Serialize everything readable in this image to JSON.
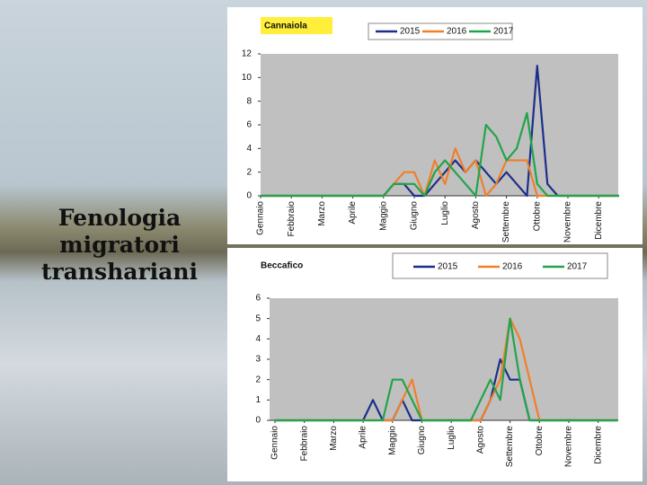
{
  "slide_title": "Fenologia migratori transhariani",
  "chart_data": [
    {
      "type": "line",
      "title": "Cannaiola",
      "categories": [
        "Gennaio",
        null,
        null,
        "Febbraio",
        null,
        null,
        "Marzo",
        null,
        null,
        "Aprile",
        null,
        null,
        "Maggio",
        null,
        null,
        "Giugno",
        null,
        null,
        "Luglio",
        null,
        null,
        "Agosto",
        null,
        null,
        "Settembre",
        null,
        null,
        "Ottobre",
        null,
        null,
        "Novembre",
        null,
        null,
        "Dicembre",
        null,
        null
      ],
      "series": [
        {
          "name": "2015",
          "color": "#1c2f8a",
          "values": [
            0,
            0,
            0,
            0,
            0,
            0,
            0,
            0,
            0,
            0,
            0,
            0,
            0,
            1,
            1,
            0,
            0,
            1,
            2,
            3,
            2,
            3,
            2,
            1,
            2,
            1,
            0,
            11,
            1,
            0,
            0,
            0,
            0,
            0,
            0,
            0
          ]
        },
        {
          "name": "2016",
          "color": "#f07f2a",
          "values": [
            0,
            0,
            0,
            0,
            0,
            0,
            0,
            0,
            0,
            0,
            0,
            0,
            0,
            1,
            2,
            2,
            0,
            3,
            1,
            4,
            2,
            3,
            0,
            1,
            3,
            3,
            3,
            0,
            0,
            0,
            0,
            0,
            0,
            0,
            0,
            0
          ]
        },
        {
          "name": "2017",
          "color": "#22a44a",
          "values": [
            0,
            0,
            0,
            0,
            0,
            0,
            0,
            0,
            0,
            0,
            0,
            0,
            0,
            1,
            1,
            1,
            0,
            2,
            3,
            2,
            1,
            0,
            6,
            5,
            3,
            4,
            7,
            1,
            0,
            0,
            0,
            0,
            0,
            0,
            0,
            0
          ]
        }
      ],
      "ylim": [
        0,
        12
      ],
      "yticks": [
        0,
        2,
        4,
        6,
        8,
        10,
        12
      ],
      "grid": false
    },
    {
      "type": "line",
      "title": "Beccafico",
      "categories": [
        "Gennaio",
        null,
        null,
        "Febbraio",
        null,
        null,
        "Marzo",
        null,
        null,
        "Aprile",
        null,
        null,
        "Maggio",
        null,
        null,
        "Giugno",
        null,
        null,
        "Luglio",
        null,
        null,
        "Agosto",
        null,
        null,
        "Settembre",
        null,
        null,
        "Ottobre",
        null,
        null,
        "Novembre",
        null,
        null,
        "Dicembre",
        null,
        null
      ],
      "series": [
        {
          "name": "2015",
          "color": "#1c2f8a",
          "values": [
            0,
            0,
            0,
            0,
            0,
            0,
            0,
            0,
            0,
            0,
            1,
            0,
            0,
            1,
            0,
            0,
            0,
            0,
            0,
            0,
            0,
            0,
            1,
            3,
            2,
            2,
            0,
            0,
            0,
            0,
            0,
            0,
            0,
            0,
            0,
            0
          ]
        },
        {
          "name": "2016",
          "color": "#f07f2a",
          "values": [
            0,
            0,
            0,
            0,
            0,
            0,
            0,
            0,
            0,
            0,
            0,
            0,
            0,
            1,
            2,
            0,
            0,
            0,
            0,
            0,
            0,
            0,
            1,
            2,
            5,
            4,
            2,
            0,
            0,
            0,
            0,
            0,
            0,
            0,
            0,
            0
          ]
        },
        {
          "name": "2017",
          "color": "#22a44a",
          "values": [
            0,
            0,
            0,
            0,
            0,
            0,
            0,
            0,
            0,
            0,
            0,
            0,
            2,
            2,
            1,
            0,
            0,
            0,
            0,
            0,
            0,
            1,
            2,
            1,
            5,
            2,
            0,
            0,
            0,
            0,
            0,
            0,
            0,
            0,
            0,
            0
          ]
        }
      ],
      "ylim": [
        0,
        6
      ],
      "yticks": [
        0,
        1,
        2,
        3,
        4,
        5,
        6
      ],
      "grid": false
    }
  ]
}
